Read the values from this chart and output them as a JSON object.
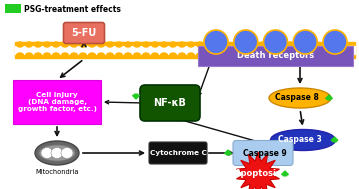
{
  "bg_color": "#ffffff",
  "legend_green": "#22cc22",
  "legend_text": "PSG-treatment effects",
  "membrane_color": "#FFB300",
  "sfu_color": "#e87060",
  "sfu_text": "5-FU",
  "cell_injury_color": "#ff00ff",
  "cell_injury_text": "Cell injury\n(DNA damage,\ngrowth factor, etc.)",
  "death_receptor_color": "#7755bb",
  "death_receptor_text": "Death receptors",
  "death_receptor_circle_color": "#5577ee",
  "nfkb_color": "#115500",
  "nfkb_text": "NF-κB",
  "caspase8_color": "#FFB300",
  "caspase8_text": "Caspase 8",
  "caspase3_color": "#2233bb",
  "caspase3_text": "Caspase 3",
  "caspase9_color": "#aaccee",
  "caspase9_text": "Caspase 9",
  "cytc_color": "#111111",
  "cytc_text": "Cytochrome C",
  "mito_color": "#888888",
  "mito_text": "Mitochondria",
  "apoptosis_color": "#ee1111",
  "apoptosis_text": "Apoptosis",
  "arrow_color": "#111111",
  "green_arrow_color": "#22cc22"
}
